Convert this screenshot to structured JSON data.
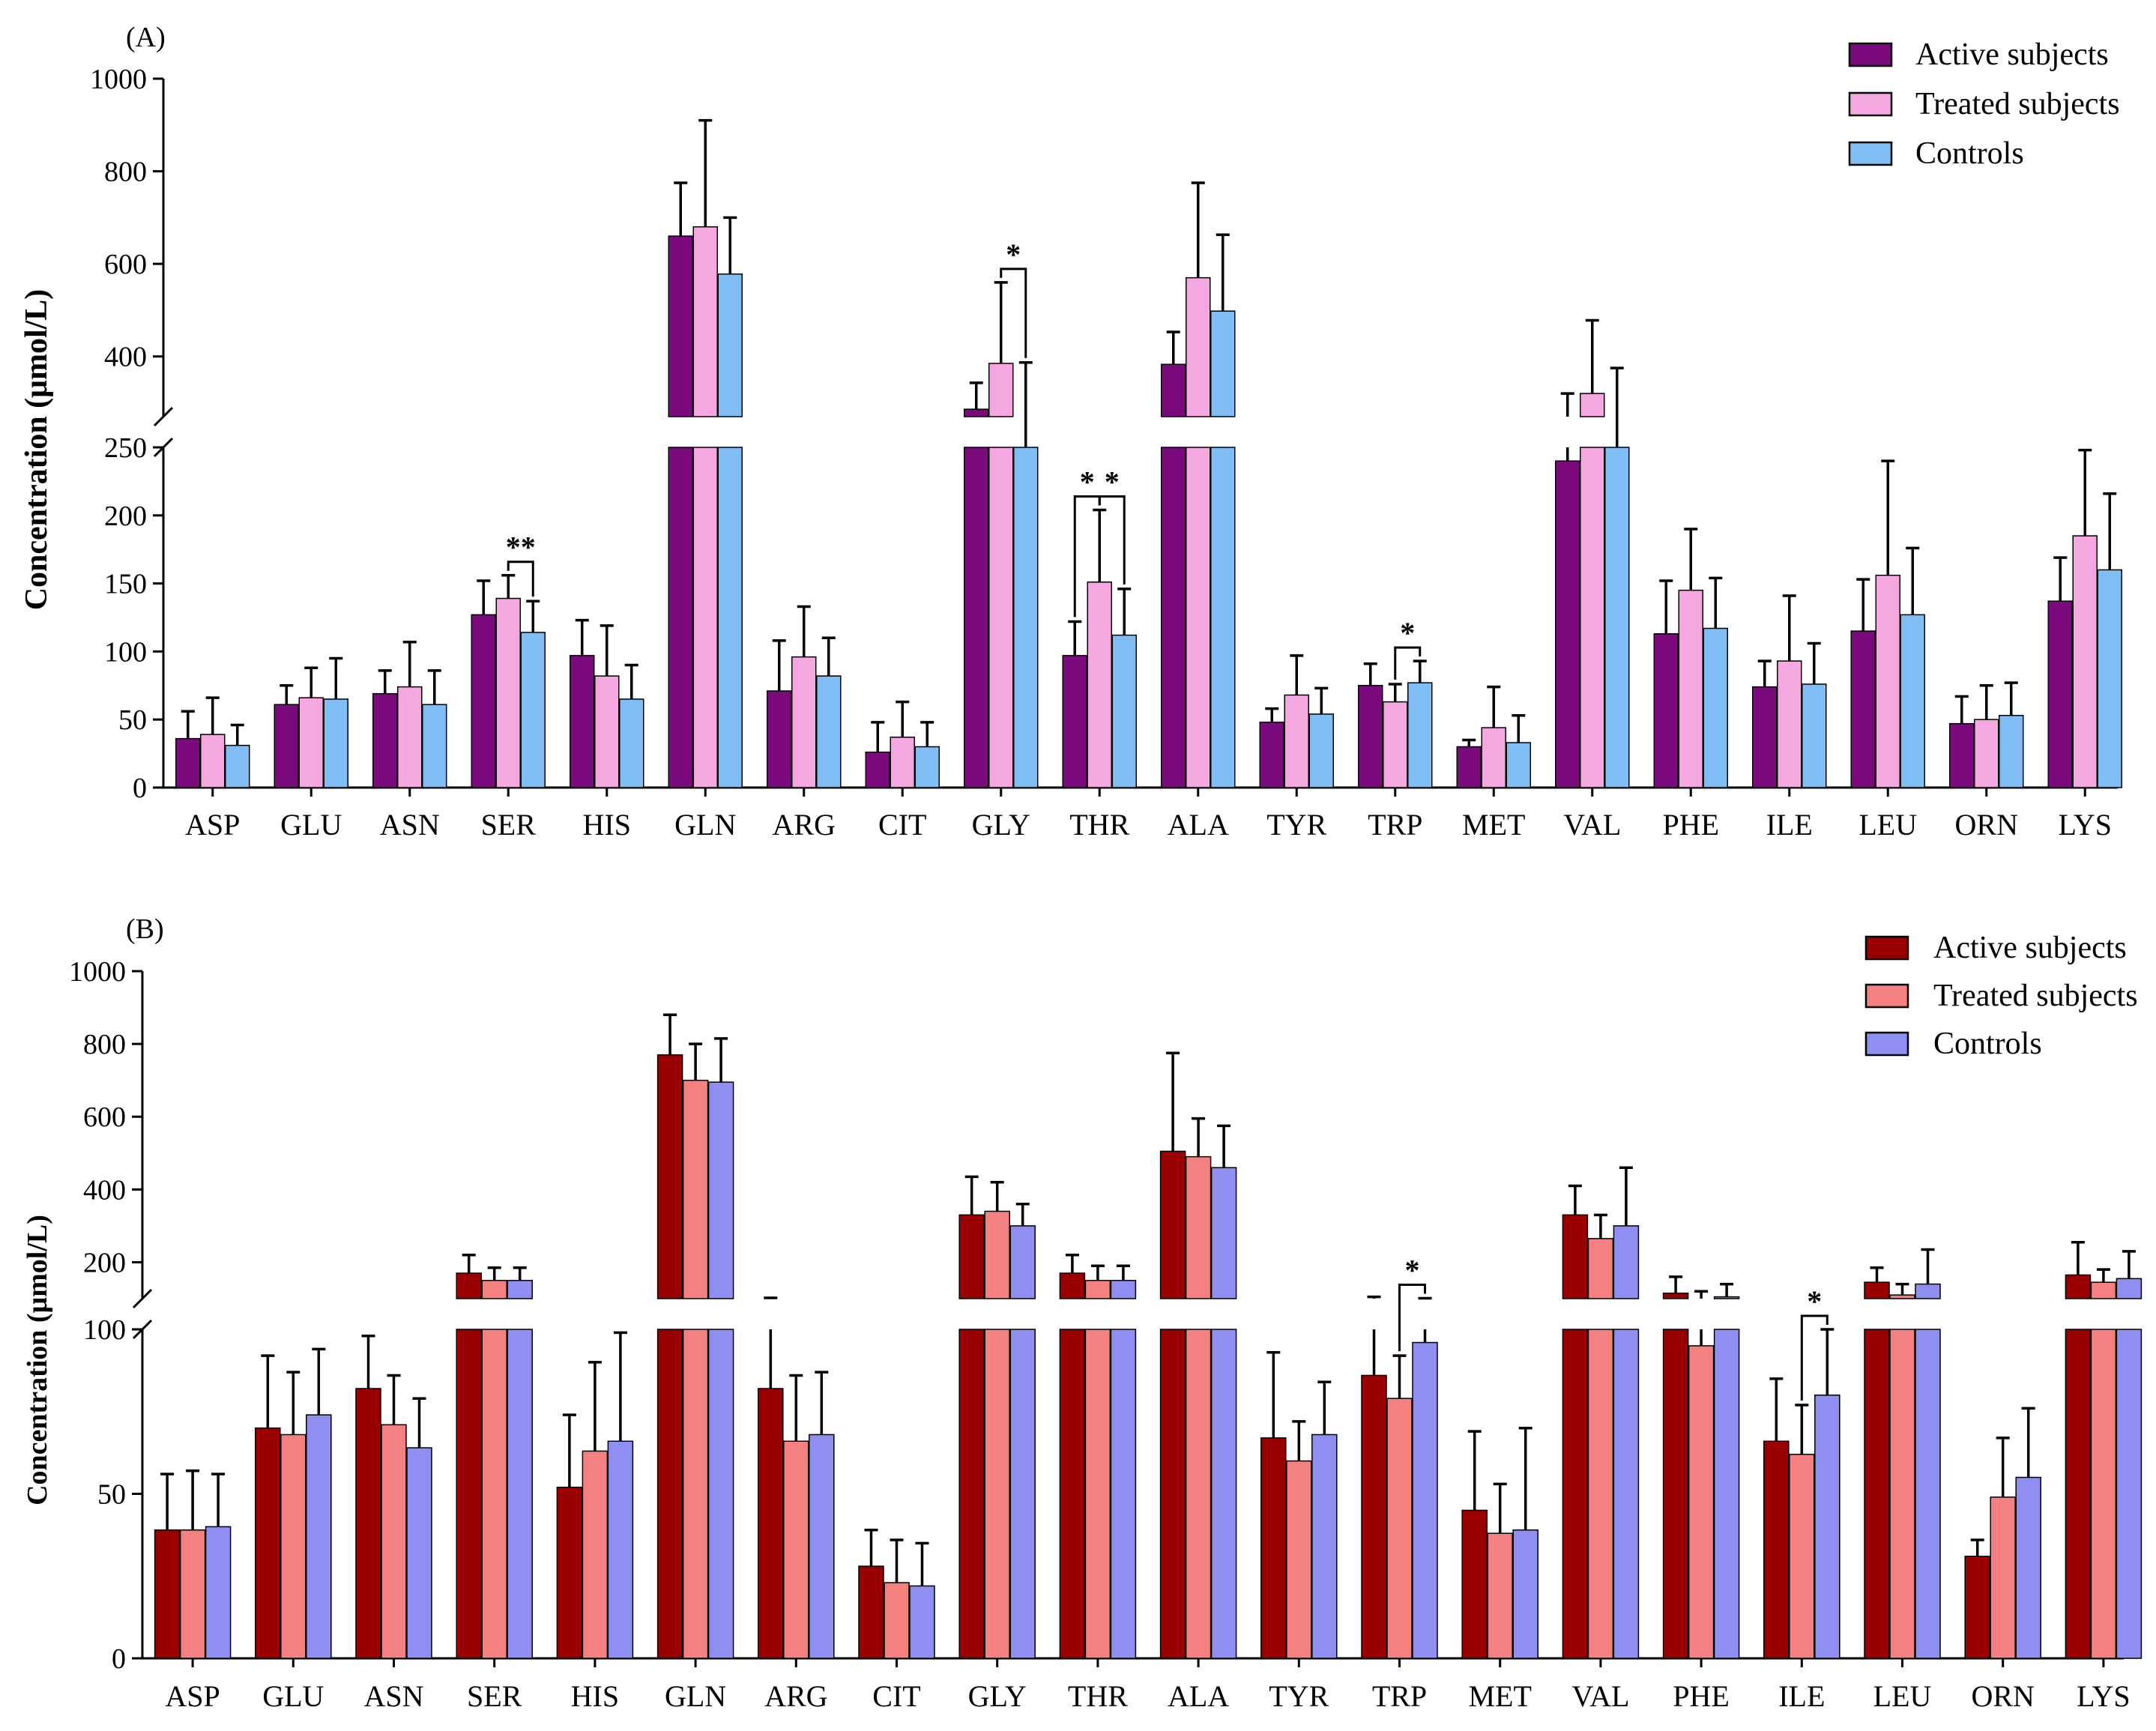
{
  "chart_data": [
    {
      "panel_label": "(A)",
      "type": "bar",
      "ylabel": "Concentration (μmol/L)",
      "categories": [
        "ASP",
        "GLU",
        "ASN",
        "SER",
        "HIS",
        "GLN",
        "ARG",
        "CIT",
        "GLY",
        "THR",
        "ALA",
        "TYR",
        "TRP",
        "MET",
        "VAL",
        "PHE",
        "ILE",
        "LEU",
        "ORN",
        "LYS"
      ],
      "axis_break": {
        "lower_range": [
          0,
          250
        ],
        "upper_range": [
          270,
          1000
        ]
      },
      "lower_ticks": [
        "0",
        "50",
        "100",
        "150",
        "200",
        "250"
      ],
      "upper_ticks": [
        "400",
        "600",
        "800",
        "1000"
      ],
      "legend_position": "top-right",
      "series": [
        {
          "name": "Active subjects",
          "color": "#7b0a7c",
          "values": [
            36,
            61,
            69,
            127,
            97,
            660,
            71,
            26,
            286,
            97,
            383,
            48,
            75,
            30,
            240,
            113,
            74,
            115,
            47,
            137
          ],
          "errors": [
            20,
            14,
            17,
            25,
            26,
            115,
            37,
            22,
            57,
            25,
            70,
            10,
            16,
            5,
            80,
            39,
            19,
            38,
            20,
            32
          ]
        },
        {
          "name": "Treated subjects",
          "color": "#f5a7e0",
          "values": [
            39,
            66,
            74,
            139,
            82,
            680,
            96,
            37,
            385,
            151,
            570,
            68,
            63,
            44,
            320,
            145,
            93,
            156,
            50,
            185
          ],
          "errors": [
            27,
            22,
            33,
            17,
            37,
            230,
            37,
            26,
            175,
            53,
            205,
            29,
            13,
            30,
            158,
            45,
            48,
            84,
            25,
            63
          ]
        },
        {
          "name": "Controls",
          "color": "#80bdf2",
          "values": [
            31,
            65,
            61,
            114,
            65,
            578,
            82,
            30,
            269,
            112,
            498,
            54,
            77,
            33,
            263,
            117,
            76,
            127,
            53,
            160
          ],
          "errors": [
            15,
            30,
            25,
            23,
            25,
            122,
            28,
            18,
            118,
            34,
            165,
            19,
            16,
            20,
            112,
            37,
            30,
            49,
            24,
            56
          ]
        }
      ],
      "significance": [
        {
          "category": "SER",
          "label": "**",
          "pair": "Treated subjects vs Controls"
        },
        {
          "category": "GLY",
          "label": "*",
          "pair": "Treated subjects vs Controls"
        },
        {
          "category": "THR",
          "label": "*",
          "pair": "Active subjects vs Treated subjects"
        },
        {
          "category": "THR",
          "label": "*",
          "pair": "Treated subjects vs Controls"
        },
        {
          "category": "TRP",
          "label": "*",
          "pair": "Treated subjects vs Controls"
        }
      ]
    },
    {
      "panel_label": "(B)",
      "type": "bar",
      "ylabel": "Concentration (μmol/L)",
      "categories": [
        "ASP",
        "GLU",
        "ASN",
        "SER",
        "HIS",
        "GLN",
        "ARG",
        "CIT",
        "GLY",
        "THR",
        "ALA",
        "TYR",
        "TRP",
        "MET",
        "VAL",
        "PHE",
        "ILE",
        "LEU",
        "ORN",
        "LYS"
      ],
      "axis_break": {
        "lower_range": [
          0,
          100
        ],
        "upper_range": [
          100,
          1000
        ]
      },
      "lower_ticks": [
        "0",
        "50",
        "100"
      ],
      "upper_ticks": [
        "200",
        "400",
        "600",
        "800",
        "1000"
      ],
      "legend_position": "top-right",
      "series": [
        {
          "name": "Active subjects",
          "color": "#9b0000",
          "values": [
            39,
            70,
            82,
            170,
            52,
            770,
            82,
            28,
            330,
            170,
            505,
            67,
            86,
            45,
            330,
            115,
            66,
            145,
            31,
            165
          ],
          "errors": [
            17,
            22,
            16,
            50,
            22,
            110,
            20,
            11,
            105,
            50,
            270,
            26,
            19,
            24,
            80,
            45,
            19,
            40,
            5,
            90
          ]
        },
        {
          "name": "Treated subjects",
          "color": "#f48080",
          "values": [
            39,
            68,
            71,
            150,
            63,
            700,
            66,
            23,
            340,
            150,
            490,
            60,
            79,
            38,
            265,
            95,
            62,
            110,
            49,
            145
          ],
          "errors": [
            18,
            19,
            15,
            35,
            27,
            100,
            20,
            13,
            80,
            40,
            105,
            12,
            13,
            15,
            65,
            25,
            15,
            30,
            18,
            35
          ]
        },
        {
          "name": "Controls",
          "color": "#8f8ff2",
          "values": [
            40,
            74,
            64,
            150,
            66,
            695,
            68,
            22,
            300,
            150,
            460,
            68,
            96,
            39,
            300,
            105,
            80,
            140,
            55,
            155
          ],
          "errors": [
            16,
            20,
            15,
            35,
            33,
            120,
            19,
            13,
            60,
            40,
            115,
            16,
            5,
            31,
            160,
            35,
            20,
            95,
            21,
            75
          ]
        }
      ],
      "significance": [
        {
          "category": "TRP",
          "label": "*",
          "pair": "Treated subjects vs Controls"
        },
        {
          "category": "ILE",
          "label": "*",
          "pair": "Treated subjects vs Controls"
        }
      ]
    }
  ]
}
